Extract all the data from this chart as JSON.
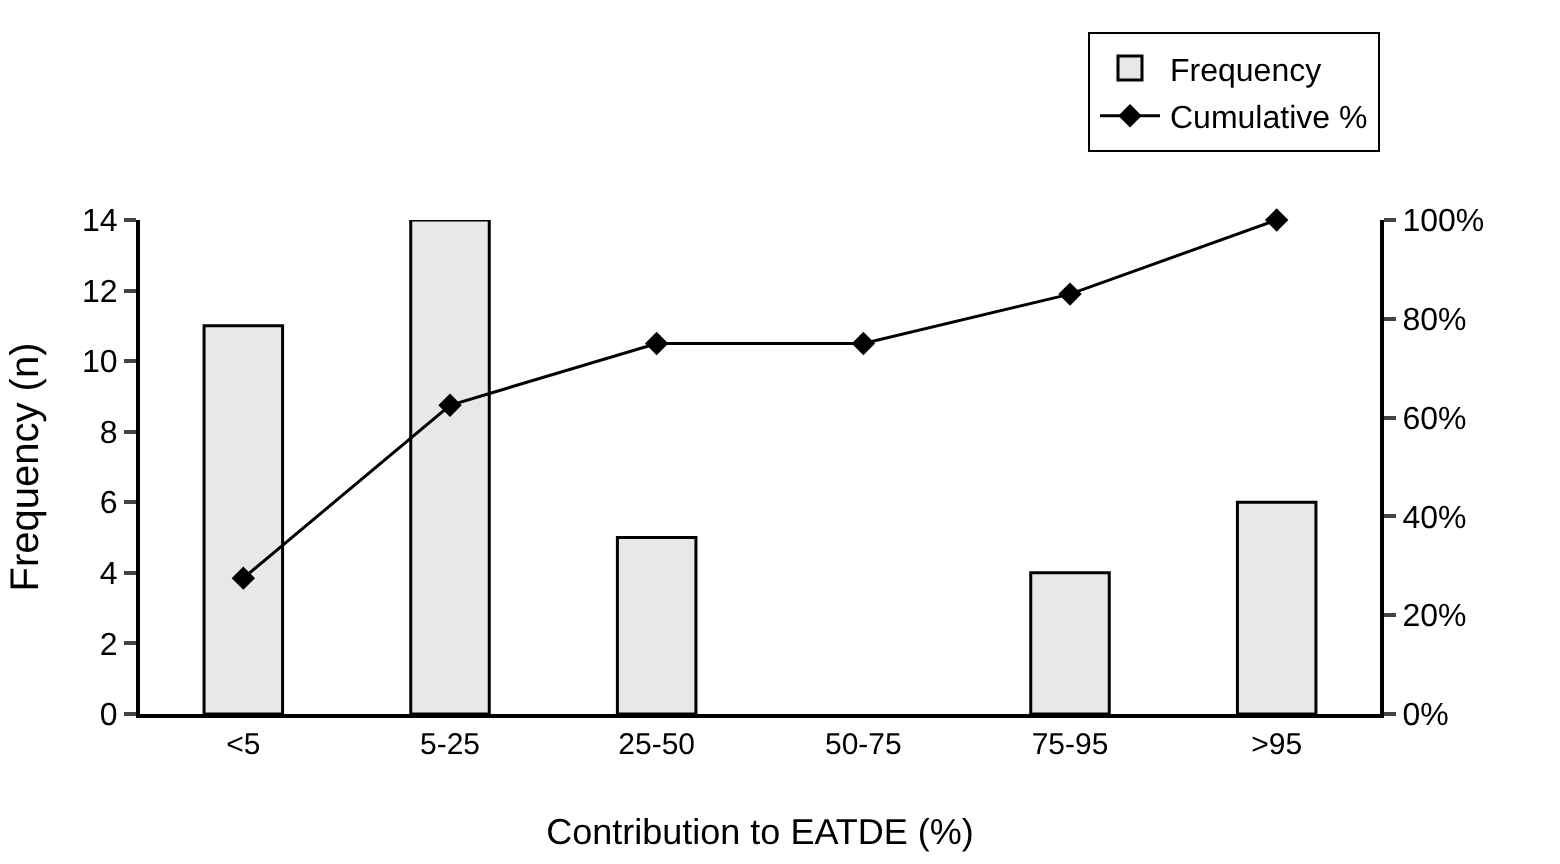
{
  "chart_data": {
    "type": "bar",
    "xlabel": "Contribution to EATDE (%)",
    "ylabel": "Frequency (n)",
    "categories": [
      "<5",
      "5-25",
      "25-50",
      "50-75",
      "75-95",
      ">95"
    ],
    "series": [
      {
        "name": "Frequency",
        "color": "#e8e8e8",
        "values": [
          11,
          14,
          5,
          0,
          4,
          6
        ]
      },
      {
        "name": "Cumulative %",
        "type": "line",
        "axis": "y2",
        "color": "#000000",
        "marker": "diamond",
        "values": [
          27.5,
          62.5,
          75,
          75,
          85,
          100
        ]
      }
    ],
    "ylim": [
      0,
      14
    ],
    "yticks": [
      0,
      2,
      4,
      6,
      8,
      10,
      12,
      14
    ],
    "y2lim": [
      0,
      100
    ],
    "y2ticks": [
      {
        "value": 0,
        "label": "0%"
      },
      {
        "value": 20,
        "label": "20%"
      },
      {
        "value": 40,
        "label": "40%"
      },
      {
        "value": 60,
        "label": "60%"
      },
      {
        "value": 80,
        "label": "80%"
      },
      {
        "value": 100,
        "label": "100%"
      }
    ],
    "grid": false,
    "legend": "top right"
  }
}
